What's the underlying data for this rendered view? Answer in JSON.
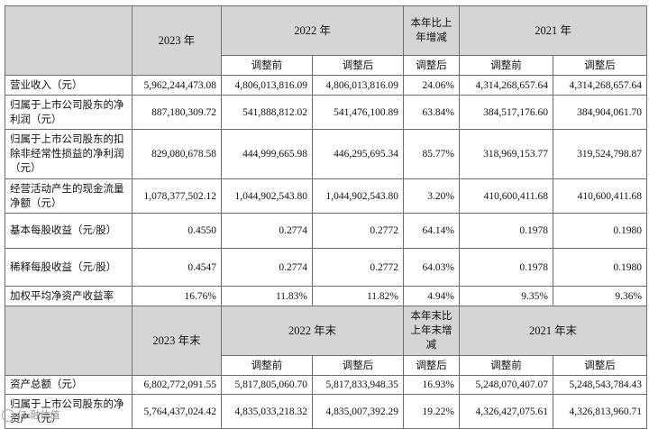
{
  "header1": {
    "y2023": "2023 年",
    "y2022": "2022 年",
    "change": "本年比上年增减",
    "y2021": "2021 年",
    "before": "调整前",
    "after": "调整后",
    "after_change": "调整后"
  },
  "rows1": [
    {
      "label": "营业收入（元）",
      "v2023": "5,962,244,473.08",
      "b2022": "4,806,013,816.09",
      "a2022": "4,806,013,816.09",
      "chg": "24.06%",
      "b2021": "4,314,268,657.64",
      "a2021": "4,314,268,657.64"
    },
    {
      "label": "归属于上市公司股东的净利润（元）",
      "v2023": "887,180,309.72",
      "b2022": "541,888,812.02",
      "a2022": "541,476,100.89",
      "chg": "63.84%",
      "b2021": "384,517,176.60",
      "a2021": "384,904,061.70"
    },
    {
      "label": "归属于上市公司股东的扣除非经常性损益的净利润（元）",
      "v2023": "829,080,678.58",
      "b2022": "444,999,665.98",
      "a2022": "446,295,695.34",
      "chg": "85.77%",
      "b2021": "318,969,153.77",
      "a2021": "319,524,798.87"
    },
    {
      "label": "经营活动产生的现金流量净额（元）",
      "v2023": "1,078,377,502.12",
      "b2022": "1,044,902,543.80",
      "a2022": "1,044,902,543.80",
      "chg": "3.20%",
      "b2021": "410,600,411.68",
      "a2021": "410,600,411.68"
    },
    {
      "label": "基本每股收益（元/股）",
      "v2023": "0.4550",
      "b2022": "0.2774",
      "a2022": "0.2772",
      "chg": "64.14%",
      "b2021": "0.1978",
      "a2021": "0.1980"
    },
    {
      "label": "稀释每股收益（元/股）",
      "v2023": "0.4547",
      "b2022": "0.2774",
      "a2022": "0.2772",
      "chg": "64.03%",
      "b2021": "0.1978",
      "a2021": "0.1980"
    },
    {
      "label": "加权平均净资产收益率",
      "v2023": "16.76%",
      "b2022": "11.83%",
      "a2022": "11.82%",
      "chg": "4.94%",
      "b2021": "9.35%",
      "a2021": "9.36%"
    }
  ],
  "header2": {
    "y2023": "2023 年末",
    "y2022": "2022 年末",
    "change": "本年末比上年末增减",
    "y2021": "2021 年末",
    "before": "调整前",
    "after": "调整后",
    "after_change": "调整后"
  },
  "rows2": [
    {
      "label": "资产总额（元）",
      "v2023": "6,802,772,091.55",
      "b2022": "5,817,805,060.70",
      "a2022": "5,817,833,948.35",
      "chg": "16.93%",
      "b2021": "5,248,070,407.07",
      "a2021": "5,248,543,784.43"
    },
    {
      "label": "归属于上市公司股东的净资产（元）",
      "v2023": "5,764,437,024.42",
      "b2022": "4,835,033,218.32",
      "a2022": "4,835,007,392.29",
      "chg": "19.22%",
      "b2021": "4,326,427,075.61",
      "a2021": "4,326,813,960.71"
    }
  ],
  "watermark": "亿 融估值"
}
